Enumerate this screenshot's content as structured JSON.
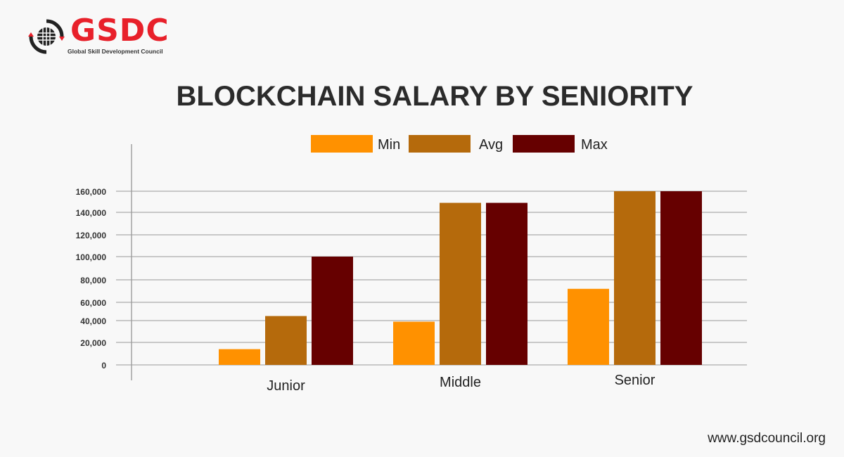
{
  "logo": {
    "text": "GSDC",
    "subtitle": "Global Skill Development Council"
  },
  "footer": {
    "url": "www.gsdcouncil.org"
  },
  "chart_data": {
    "type": "bar",
    "title": "BLOCKCHAIN SALARY BY SENIORITY",
    "categories": [
      "Junior",
      "Middle",
      "Senior"
    ],
    "series": [
      {
        "name": "Min",
        "color": "#ff9100",
        "values": [
          14000,
          39000,
          72000
        ]
      },
      {
        "name": "Avg",
        "color": "#b56a0c",
        "values": [
          45000,
          149000,
          160000
        ]
      },
      {
        "name": "Max",
        "color": "#660000",
        "values": [
          100000,
          149000,
          160000
        ]
      }
    ],
    "yticks": [
      0,
      20000,
      40000,
      60000,
      80000,
      100000,
      120000,
      140000,
      160000
    ],
    "ytick_labels": [
      "0",
      "20,000",
      "40,000",
      "60,000",
      "80,000",
      "100,000",
      "120,000",
      "140,000",
      "160,000"
    ],
    "ylim": [
      0,
      160000
    ],
    "grid": true,
    "legend": "top-center",
    "xlabel": "",
    "ylabel": ""
  }
}
